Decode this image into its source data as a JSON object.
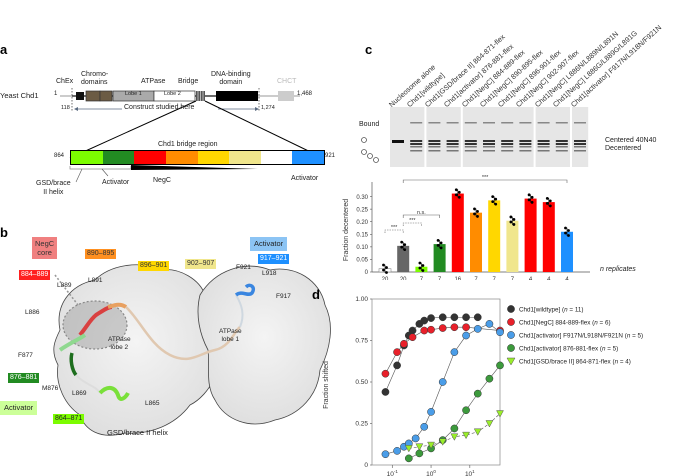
{
  "panels": {
    "a": "a",
    "b": "b",
    "c": "c",
    "d": "d"
  },
  "panel_a": {
    "protein": "Yeast Chd1",
    "start": "1",
    "end": "1,468",
    "construct_start": "118",
    "construct_end": "1,274",
    "construct_label": "Construct studied here",
    "domains": {
      "chex": "ChEx",
      "chromo": "Chromo-",
      "chromo2": "domains",
      "atpase": "ATPase",
      "bridge": "Bridge",
      "dna": "DNA-binding",
      "dna2": "domain",
      "chct": "CHCT",
      "lobe1": "Lobe 1",
      "lobe2": "Lobe 2"
    },
    "bridge_region": {
      "title": "Chd1 bridge region",
      "start": "864",
      "end": "921",
      "segments": [
        {
          "color": "#7CFC00"
        },
        {
          "color": "#228B22"
        },
        {
          "color": "#FF0000"
        },
        {
          "color": "#FF8C00"
        },
        {
          "color": "#FFD700"
        },
        {
          "color": "#F0E68C"
        },
        {
          "color": "#FFFFFF"
        },
        {
          "color": "#1E90FF"
        }
      ],
      "labels": {
        "gsd": "GSD/brace",
        "gsd2": "II helix",
        "activator_left": "Activator",
        "negc": "NegC",
        "activator_right": "Activator"
      }
    }
  },
  "panel_b": {
    "tags": {
      "negc_core": "NegC",
      "negc_core2": "core",
      "r884": "884–889",
      "r890": "890–895",
      "r896": "896–901",
      "r902": "902–907",
      "activator_blue": "Activator",
      "r917": "917–921",
      "r876": "876–881",
      "activator_green": "Activator",
      "r864": "864–871"
    },
    "residues": {
      "l891": "L891",
      "l889": "L889",
      "l886": "L886",
      "f877": "F877",
      "m876": "M876",
      "l869": "L869",
      "l865": "L865",
      "f921": "F921",
      "l918": "L918",
      "f917": "F917"
    },
    "lobe2": "ATPase",
    "lobe2b": "lobe 2",
    "lobe1": "ATPase",
    "lobe1b": "lobe 1",
    "gsd_helix": "GSD/brace II helix"
  },
  "panel_c": {
    "gel": {
      "lanes": [
        "Nucleosome alone",
        "Chd1[wildtype]",
        "Chd1[GSD/brace II] 864-871-flex",
        "Chd1[activator] 876-881-flex",
        "Chd1[NegC] 884-889-flex",
        "Chd1[NegC] 890-895-flex",
        "Chd1[NegC] 896-901-flex",
        "Chd1[NegC] 902-907-flex",
        "Chd1[NegC] L886N/L889N/L891N",
        "Chd1[NegC] L886G/L889G/L891G",
        "Chd1[activator] F917N/L918N/F921N"
      ],
      "bound_label": "Bound",
      "centered_label": "Centered 40N40",
      "decentered_label": "Decentered"
    },
    "n_label": "n replicates",
    "sig": {
      "all": "***",
      "ns": "n.s.",
      "s1": "***",
      "s2": "***"
    }
  },
  "chart_data": [
    {
      "type": "bar",
      "title": "",
      "xlabel": "",
      "ylabel": "Fraction decentered",
      "ylim": [
        0,
        0.35
      ],
      "yticks": [
        0,
        0.05,
        0.1,
        0.15,
        0.2,
        0.25,
        0.3
      ],
      "ytick_labels": [
        "0",
        "0.05",
        "0.10",
        "0.15",
        "0.20",
        "0.25",
        "0.30"
      ],
      "categories": [
        "Nucleosome alone",
        "Chd1[wildtype]",
        "Chd1[GSD/brace II] 864-871-flex",
        "Chd1[activator] 876-881-flex",
        "Chd1[NegC] 884-889-flex",
        "Chd1[NegC] 890-895-flex",
        "Chd1[NegC] 896-901-flex",
        "Chd1[NegC] 902-907-flex",
        "Chd1[NegC] L886N/L889N/L891N",
        "Chd1[NegC] L886G/L889G/L891G",
        "Chd1[activator] F917N/L918N/F921N"
      ],
      "values": [
        0.013,
        0.104,
        0.021,
        0.111,
        0.312,
        0.236,
        0.285,
        0.204,
        0.292,
        0.278,
        0.16
      ],
      "n_replicates": [
        "20",
        "20",
        "7",
        "7",
        "16",
        "7",
        "7",
        "7",
        "4",
        "4",
        "4"
      ],
      "colors": [
        "#FFFFFF",
        "#666666",
        "#7CFC00",
        "#228B22",
        "#FF0000",
        "#FF8C00",
        "#FFD700",
        "#F0E68C",
        "#FF0000",
        "#FF0000",
        "#1E90FF"
      ],
      "annotations": [
        "***",
        "n.s.",
        "***",
        "***"
      ]
    },
    {
      "type": "scatter",
      "title": "",
      "xlabel": "Time (min)",
      "ylabel": "Fraction shifted",
      "xscale": "log",
      "xlim": [
        0.03,
        60
      ],
      "ylim": [
        0,
        1.0
      ],
      "xticks": [
        "10-1",
        "100",
        "101"
      ],
      "yticks": [
        0,
        0.25,
        0.5,
        0.75,
        1.0
      ],
      "ytick_labels": [
        "0",
        "0.25",
        "0.50",
        "0.75",
        "1.00"
      ],
      "legend_position": "right",
      "series": [
        {
          "name": "Chd1[wildtype]",
          "n": "11",
          "color": "#333333",
          "marker": "circle",
          "x": [
            0.0667,
            0.133,
            0.2,
            0.267,
            0.333,
            0.5,
            0.667,
            1,
            2,
            4,
            8,
            16
          ],
          "y": [
            0.44,
            0.6,
            0.72,
            0.78,
            0.81,
            0.85,
            0.87,
            0.885,
            0.89,
            0.89,
            0.89,
            0.89
          ]
        },
        {
          "name": "Chd1[NegC] 884-889-flex",
          "n": "6",
          "color": "#E8202A",
          "marker": "circle",
          "x": [
            0.0667,
            0.133,
            0.2,
            0.333,
            0.667,
            1,
            2,
            4,
            8,
            60
          ],
          "y": [
            0.55,
            0.68,
            0.73,
            0.77,
            0.81,
            0.815,
            0.825,
            0.83,
            0.83,
            0.81
          ]
        },
        {
          "name": "Chd1[activator] F917N/L918N/F921N",
          "n": "5",
          "color": "#4A9DE8",
          "marker": "circle",
          "x": [
            0.0667,
            0.133,
            0.2,
            0.267,
            0.4,
            0.667,
            1,
            2,
            4,
            8,
            16,
            32,
            60
          ],
          "y": [
            0.065,
            0.085,
            0.11,
            0.13,
            0.16,
            0.23,
            0.32,
            0.5,
            0.68,
            0.78,
            0.82,
            0.85,
            0.8
          ]
        },
        {
          "name": "Chd1[activator] 876-881-flex",
          "n": "5",
          "color": "#3C9A3C",
          "marker": "circle",
          "x": [
            0.267,
            0.5,
            1,
            2,
            4,
            8,
            16,
            32,
            60
          ],
          "y": [
            0.04,
            0.07,
            0.1,
            0.15,
            0.22,
            0.33,
            0.43,
            0.52,
            0.6
          ]
        },
        {
          "name": "Chd1[GSD/brace II] 864-871-flex",
          "n": "4",
          "color": "#9AEE2A",
          "marker": "triangle",
          "x": [
            0.267,
            0.5,
            1,
            2,
            4,
            8,
            16,
            32,
            60
          ],
          "y": [
            0.1,
            0.11,
            0.12,
            0.14,
            0.17,
            0.18,
            0.2,
            0.25,
            0.31
          ]
        }
      ]
    }
  ]
}
